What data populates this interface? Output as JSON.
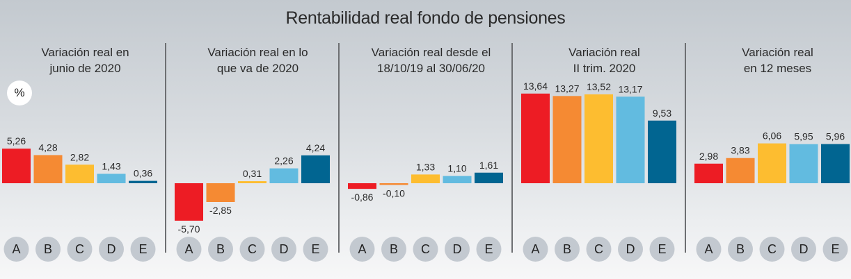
{
  "title": "Rentabilidad real fondo de pensiones",
  "unit_badge": "%",
  "colors": {
    "A": "#ed1c24",
    "B": "#f58a33",
    "C": "#fdbd30",
    "D": "#62bbe0",
    "E": "#016591",
    "circle": "#c3c9d0"
  },
  "chart_data": [
    {
      "type": "bar",
      "title": "Variación real en\njunio de 2020",
      "categories": [
        "A",
        "B",
        "C",
        "D",
        "E"
      ],
      "values": [
        5.26,
        4.28,
        2.82,
        1.43,
        0.36
      ],
      "labels": [
        "5,26",
        "4,28",
        "2,82",
        "1,43",
        "0,36"
      ]
    },
    {
      "type": "bar",
      "title": "Variación real en lo\nque va de 2020",
      "categories": [
        "A",
        "B",
        "C",
        "D",
        "E"
      ],
      "values": [
        -5.7,
        -2.85,
        0.31,
        2.26,
        4.24
      ],
      "labels": [
        "-5,70",
        "-2,85",
        "0,31",
        "2,26",
        "4,24"
      ]
    },
    {
      "type": "bar",
      "title": "Variación real desde el\n18/10/19 al 30/06/20",
      "categories": [
        "A",
        "B",
        "C",
        "D",
        "E"
      ],
      "values": [
        -0.86,
        -0.1,
        1.33,
        1.1,
        1.61
      ],
      "labels": [
        "-0,86",
        "-0,10",
        "1,33",
        "1,10",
        "1,61"
      ]
    },
    {
      "type": "bar",
      "title": "Variación real\nII trim. 2020",
      "categories": [
        "A",
        "B",
        "C",
        "D",
        "E"
      ],
      "values": [
        13.64,
        13.27,
        13.52,
        13.17,
        9.53
      ],
      "labels": [
        "13,64",
        "13,27",
        "13,52",
        "13,17",
        "9,53"
      ]
    },
    {
      "type": "bar",
      "title": "Variación real\nen 12 meses",
      "categories": [
        "A",
        "B",
        "C",
        "D",
        "E"
      ],
      "values": [
        2.98,
        3.83,
        6.06,
        5.95,
        5.96
      ],
      "labels": [
        "2,98",
        "3,83",
        "6,06",
        "5,95",
        "5,96"
      ]
    }
  ]
}
